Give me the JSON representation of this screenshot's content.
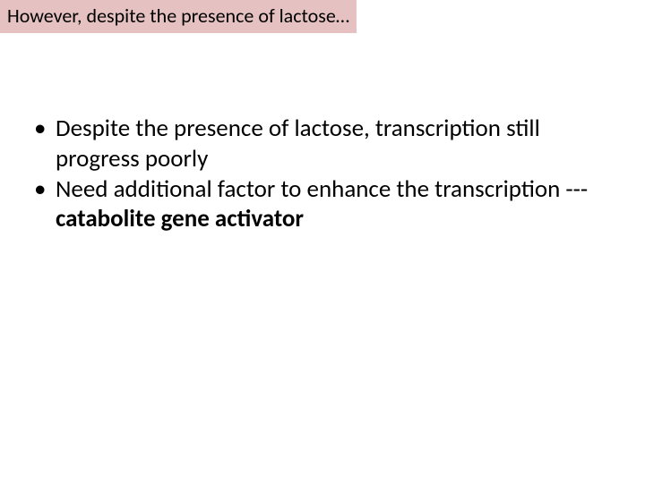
{
  "slide": {
    "title": "However, despite the presence of lactose…",
    "title_bg_color": "#e6c1c1",
    "title_text_color": "#000000",
    "title_fontsize": 22,
    "background_color": "#ffffff",
    "bullets": [
      {
        "text_plain": "Despite the presence of lactose, transcription still progress poorly",
        "bold_fragment": null
      },
      {
        "text_prefix": "Need additional factor to enhance the transcription --- ",
        "bold_fragment": "catabolite gene activator"
      }
    ],
    "body_fontsize": 27,
    "body_text_color": "#000000"
  }
}
